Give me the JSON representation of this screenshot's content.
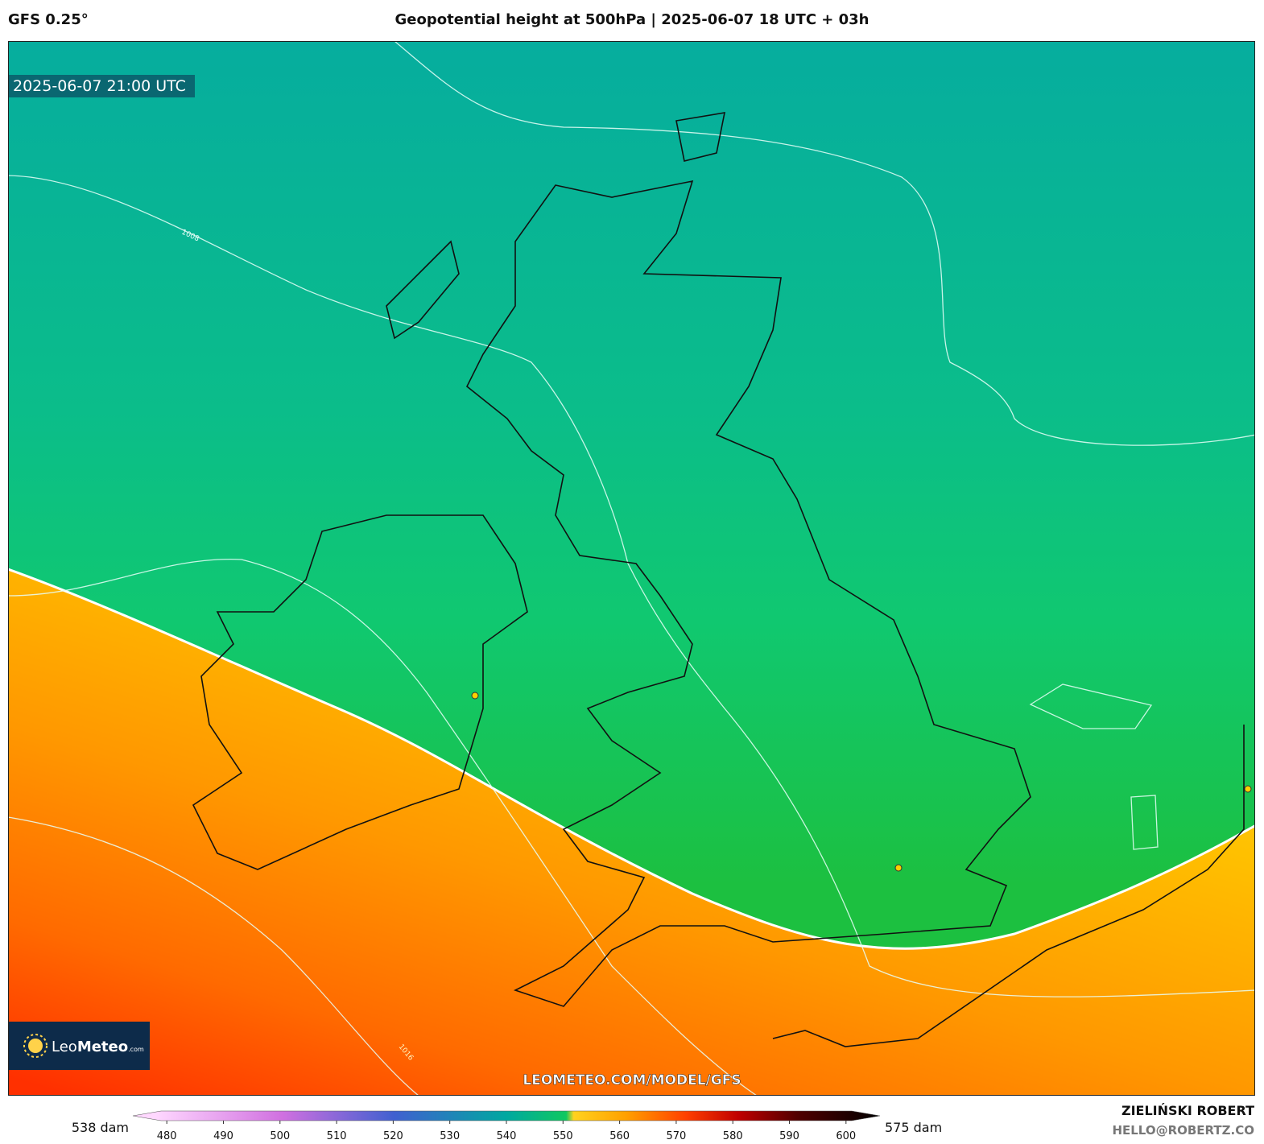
{
  "header": {
    "model": "GFS 0.25°",
    "title": "Geopotential height at 500hPa | 2025-06-07 18 UTC + 03h"
  },
  "map": {
    "valid_time": "2025-06-07 21:00 UTC",
    "contour_labels": [
      "1008",
      "1016"
    ],
    "logo": {
      "brand_light": "Leo",
      "brand_bold": "Meteo",
      "suffix": ".com"
    },
    "watermark": "LEOMETEO.COM/MODEL/GFS"
  },
  "colorbar": {
    "min_label": "538 dam",
    "max_label": "575 dam",
    "range": [
      474,
      606
    ],
    "ticks": [
      480,
      490,
      500,
      510,
      520,
      530,
      540,
      550,
      560,
      570,
      580,
      590,
      600
    ]
  },
  "footer": {
    "author": "ZIELIŃSKI ROBERT",
    "email": "HELLO@ROBERTZ.CO"
  }
}
